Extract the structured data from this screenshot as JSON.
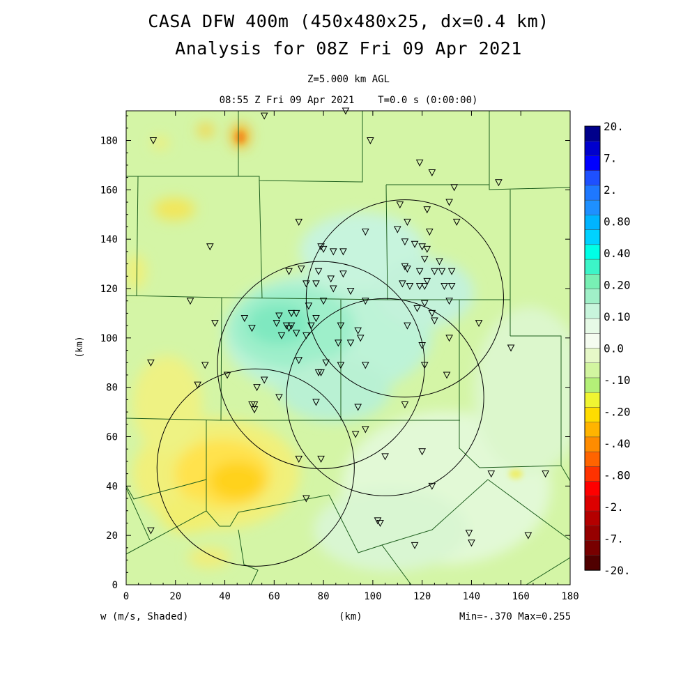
{
  "header": {
    "title_line1": "CASA DFW 400m (450x480x25, dx=0.4 km)",
    "title_line2": "Analysis for 08Z Fri 09 Apr 2021",
    "level": "Z=5.000 km AGL",
    "valid_time": "08:55 Z Fri 09 Apr 2021    T=0.0 s (0:00:00)"
  },
  "footer": {
    "field_label": "w (m/s, Shaded)",
    "xaxis_label": "(km)",
    "minmax": "Min=-.370 Max=0.255"
  },
  "chart_data": {
    "type": "heatmap",
    "title": "CASA DFW 400m (450x480x25, dx=0.4 km)",
    "subtitle": "Analysis for 08Z Fri 09 Apr 2021",
    "xlabel": "(km)",
    "ylabel": "(km)",
    "xlim": [
      0,
      180
    ],
    "ylim": [
      0,
      192
    ],
    "xticks": [
      0,
      20,
      40,
      60,
      80,
      100,
      120,
      140,
      160,
      180
    ],
    "yticks": [
      0,
      20,
      40,
      60,
      80,
      100,
      120,
      140,
      160,
      180
    ],
    "field": "w (m/s, Shaded)",
    "min": -0.37,
    "max": 0.255,
    "colorbar": {
      "labels": [
        "20.",
        "7.",
        "2.",
        "0.80",
        "0.40",
        "0.20",
        "0.10",
        "0.0",
        "-.10",
        "-.20",
        "-.40",
        "-.80",
        "-2.",
        "-7.",
        "-20."
      ],
      "colors": [
        "#00008b",
        "#0000cd",
        "#0000ff",
        "#1e50ff",
        "#1e78ff",
        "#1e90ff",
        "#00b4ff",
        "#00d2ff",
        "#00ffe6",
        "#3cf5c8",
        "#78f0b4",
        "#a0f0c8",
        "#c8f5dc",
        "#e6fae6",
        "#f5fcf0",
        "#e6f8c8",
        "#d2f5a0",
        "#b4f078",
        "#f0f532",
        "#ffdc00",
        "#ffb400",
        "#ff8c00",
        "#ff6400",
        "#ff3200",
        "#ff0000",
        "#dc0000",
        "#b40000",
        "#960000",
        "#780000",
        "#500000"
      ]
    },
    "radar_rings": [
      {
        "cx": 52.5,
        "cy": 47.5,
        "r": 40
      },
      {
        "cx": 79,
        "cy": 89,
        "r": 42
      },
      {
        "cx": 105,
        "cy": 76,
        "r": 40
      },
      {
        "cx": 113,
        "cy": 116,
        "r": 40
      }
    ],
    "stations": [
      [
        11,
        180
      ],
      [
        56,
        190
      ],
      [
        89,
        192
      ],
      [
        99,
        180
      ],
      [
        119,
        171
      ],
      [
        124,
        167
      ],
      [
        133,
        161
      ],
      [
        151,
        163
      ],
      [
        111,
        154
      ],
      [
        122,
        152
      ],
      [
        131,
        155
      ],
      [
        134,
        147
      ],
      [
        70,
        147
      ],
      [
        97,
        143
      ],
      [
        110,
        144
      ],
      [
        114,
        147
      ],
      [
        123,
        143
      ],
      [
        34,
        137
      ],
      [
        79,
        137
      ],
      [
        80,
        136
      ],
      [
        84,
        135
      ],
      [
        88,
        135
      ],
      [
        113,
        139
      ],
      [
        117,
        138
      ],
      [
        120,
        137
      ],
      [
        122,
        136
      ],
      [
        121,
        132
      ],
      [
        127,
        131
      ],
      [
        113,
        129
      ],
      [
        114,
        128
      ],
      [
        119,
        127
      ],
      [
        125,
        127
      ],
      [
        128,
        127
      ],
      [
        132,
        127
      ],
      [
        66,
        127
      ],
      [
        71,
        128
      ],
      [
        78,
        127
      ],
      [
        88,
        126
      ],
      [
        83,
        124
      ],
      [
        73,
        122
      ],
      [
        77,
        122
      ],
      [
        84,
        120
      ],
      [
        91,
        119
      ],
      [
        112,
        122
      ],
      [
        115,
        121
      ],
      [
        119,
        121
      ],
      [
        121,
        121
      ],
      [
        122,
        123
      ],
      [
        129,
        121
      ],
      [
        132,
        121
      ],
      [
        26,
        115
      ],
      [
        74,
        113
      ],
      [
        67,
        110
      ],
      [
        69,
        110
      ],
      [
        62,
        109
      ],
      [
        77,
        108
      ],
      [
        80,
        115
      ],
      [
        97,
        115
      ],
      [
        118,
        112
      ],
      [
        124,
        110
      ],
      [
        121,
        114
      ],
      [
        131,
        115
      ],
      [
        143,
        106
      ],
      [
        48,
        108
      ],
      [
        51,
        104
      ],
      [
        36,
        106
      ],
      [
        61,
        106
      ],
      [
        65,
        105
      ],
      [
        66,
        104
      ],
      [
        67,
        105
      ],
      [
        75,
        105
      ],
      [
        87,
        105
      ],
      [
        94,
        103
      ],
      [
        114,
        105
      ],
      [
        125,
        107
      ],
      [
        69,
        102
      ],
      [
        63,
        101
      ],
      [
        73,
        101
      ],
      [
        86,
        98
      ],
      [
        91,
        98
      ],
      [
        95,
        100
      ],
      [
        120,
        97
      ],
      [
        131,
        100
      ],
      [
        10,
        90
      ],
      [
        32,
        89
      ],
      [
        70,
        91
      ],
      [
        81,
        90
      ],
      [
        87,
        89
      ],
      [
        97,
        89
      ],
      [
        121,
        89
      ],
      [
        130,
        85
      ],
      [
        29,
        81
      ],
      [
        41,
        85
      ],
      [
        56,
        83
      ],
      [
        53,
        80
      ],
      [
        78,
        86
      ],
      [
        79,
        86
      ],
      [
        62,
        76
      ],
      [
        77,
        74
      ],
      [
        94,
        72
      ],
      [
        51,
        73
      ],
      [
        52,
        73
      ],
      [
        52,
        71
      ],
      [
        113,
        73
      ],
      [
        156,
        96
      ],
      [
        97,
        63
      ],
      [
        93,
        61
      ],
      [
        70,
        51
      ],
      [
        79,
        51
      ],
      [
        105,
        52
      ],
      [
        120,
        54
      ],
      [
        124,
        40
      ],
      [
        148,
        45
      ],
      [
        170,
        45
      ],
      [
        73,
        35
      ],
      [
        102,
        26
      ],
      [
        103,
        25
      ],
      [
        10,
        22
      ],
      [
        117,
        16
      ],
      [
        139,
        21
      ],
      [
        140,
        17
      ],
      [
        163,
        20
      ]
    ]
  }
}
